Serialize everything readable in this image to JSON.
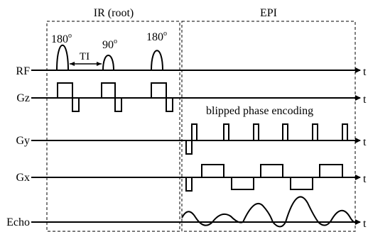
{
  "sections": {
    "ir": {
      "label": "IR (root)"
    },
    "epi": {
      "label": "EPI"
    }
  },
  "pulses": {
    "first": {
      "angle": "180",
      "degree": "o"
    },
    "second": {
      "angle": "90",
      "degree": "o"
    },
    "third": {
      "angle": "180",
      "degree": "o"
    }
  },
  "ti_label": "TI",
  "annotation": "blipped phase encoding",
  "channels": [
    {
      "id": "rf",
      "label": "RF"
    },
    {
      "id": "gz",
      "label": "Gz"
    },
    {
      "id": "gy",
      "label": "Gy"
    },
    {
      "id": "gx",
      "label": "Gx"
    },
    {
      "id": "echo",
      "label": "Echo"
    }
  ],
  "time_axis_label": "t",
  "colors": {
    "ink": "#000000",
    "background": "#ffffff"
  }
}
